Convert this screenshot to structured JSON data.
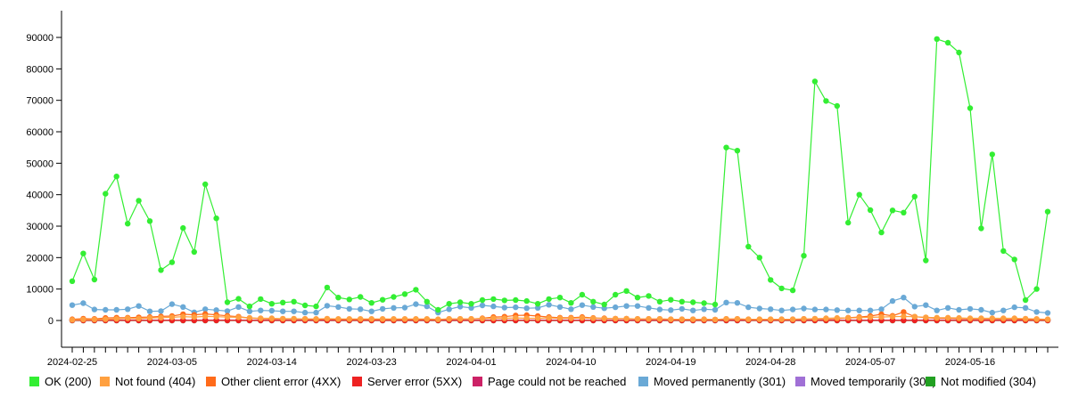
{
  "chart_data": {
    "type": "line",
    "title": "",
    "xlabel": "",
    "ylabel": "",
    "x_start": "2024-02-25",
    "x_tick_labels": [
      "2024-02-25",
      "2024-03-05",
      "2024-03-14",
      "2024-03-23",
      "2024-04-01",
      "2024-04-10",
      "2024-04-19",
      "2024-04-28",
      "2024-05-07",
      "2024-05-16"
    ],
    "y_ticks": [
      0,
      10000,
      20000,
      30000,
      40000,
      50000,
      60000,
      70000,
      80000,
      90000
    ],
    "ylim": [
      -8500,
      98500
    ],
    "grid": false,
    "legend_position": "bottom",
    "series": [
      {
        "name": "OK (200)",
        "color": "#33ee33",
        "values": [
          12500,
          21300,
          13000,
          40300,
          45800,
          30800,
          38100,
          31600,
          16000,
          18500,
          29400,
          21800,
          43300,
          32500,
          5800,
          6900,
          4500,
          6800,
          5300,
          5700,
          6000,
          4800,
          4500,
          10500,
          7300,
          6700,
          7500,
          5600,
          6600,
          7500,
          8400,
          9800,
          6000,
          3400,
          5300,
          5800,
          5300,
          6500,
          6800,
          6400,
          6500,
          6200,
          5300,
          6800,
          7300,
          5600,
          8200,
          6000,
          5100,
          8200,
          9400,
          7300,
          7800,
          6000,
          6600,
          6000,
          5800,
          5500,
          5100,
          55000,
          54000,
          23500,
          20000,
          12900,
          10200,
          9600,
          20600,
          76000,
          69800,
          68200,
          31100,
          40000,
          35100,
          28000,
          35000,
          34300,
          39400,
          19100,
          89500,
          88300,
          85200,
          67500,
          29300,
          52800,
          22100,
          19400,
          6500,
          10000,
          34600
        ]
      },
      {
        "name": "Not found (404)",
        "color": "#ffa040",
        "values": [
          200,
          300,
          300,
          400,
          500,
          700,
          600,
          800,
          900,
          1000,
          1200,
          1100,
          1300,
          1200,
          1100,
          1000,
          800,
          700,
          700,
          600,
          600,
          500,
          500,
          600,
          500,
          500,
          500,
          500,
          500,
          500,
          500,
          500,
          500,
          400,
          500,
          500,
          500,
          600,
          700,
          700,
          800,
          700,
          700,
          800,
          700,
          700,
          800,
          700,
          600,
          600,
          600,
          500,
          500,
          500,
          400,
          400,
          400,
          400,
          300,
          500,
          500,
          400,
          400,
          400,
          400,
          400,
          500,
          600,
          700,
          800,
          800,
          900,
          1000,
          1100,
          1200,
          1300,
          1200,
          1000,
          900,
          900,
          800,
          700,
          700,
          700,
          700,
          700,
          600,
          500,
          400
        ]
      },
      {
        "name": "Other client error (4XX)",
        "color": "#ff6b1a",
        "values": [
          400,
          600,
          500,
          800,
          900,
          900,
          1000,
          1100,
          1300,
          1400,
          2000,
          1800,
          2100,
          1800,
          1500,
          1200,
          800,
          600,
          500,
          500,
          500,
          500,
          400,
          500,
          400,
          400,
          400,
          400,
          400,
          400,
          400,
          400,
          400,
          300,
          500,
          500,
          500,
          700,
          1100,
          1200,
          1600,
          1700,
          1400,
          1100,
          900,
          900,
          1100,
          800,
          700,
          600,
          600,
          500,
          500,
          500,
          400,
          400,
          400,
          400,
          300,
          500,
          500,
          400,
          400,
          400,
          400,
          400,
          500,
          500,
          500,
          600,
          900,
          1100,
          1400,
          2000,
          1500,
          2700,
          1200,
          900,
          700,
          700,
          600,
          500,
          500,
          500,
          500,
          500,
          400,
          300,
          300
        ]
      },
      {
        "name": "Server error (5XX)",
        "color": "#ee2222",
        "values": [
          60,
          60,
          60,
          60,
          60,
          60,
          60,
          60,
          60,
          60,
          60,
          60,
          60,
          60,
          60,
          60,
          60,
          60,
          60,
          60,
          60,
          60,
          60,
          60,
          60,
          60,
          60,
          60,
          60,
          60,
          60,
          60,
          60,
          60,
          60,
          60,
          60,
          60,
          60,
          60,
          60,
          60,
          60,
          60,
          60,
          60,
          60,
          60,
          60,
          60,
          60,
          60,
          60,
          60,
          60,
          60,
          60,
          60,
          60,
          60,
          60,
          60,
          60,
          60,
          60,
          60,
          60,
          60,
          60,
          60,
          60,
          60,
          60,
          60,
          60,
          60,
          60,
          60,
          60,
          60,
          60,
          60,
          60,
          60,
          60,
          60,
          60,
          60,
          60
        ]
      },
      {
        "name": "Page could not be reached",
        "color": "#cc2266",
        "values": [
          80,
          80,
          80,
          80,
          80,
          80,
          80,
          80,
          80,
          80,
          80,
          80,
          80,
          80,
          80,
          80,
          80,
          80,
          80,
          80,
          80,
          80,
          80,
          80,
          80,
          80,
          80,
          80,
          80,
          80,
          80,
          80,
          80,
          80,
          80,
          80,
          80,
          80,
          80,
          80,
          80,
          80,
          80,
          80,
          80,
          80,
          80,
          80,
          80,
          80,
          80,
          80,
          80,
          80,
          80,
          80,
          80,
          80,
          80,
          80,
          80,
          80,
          80,
          80,
          80,
          80,
          80,
          80,
          80,
          80,
          80,
          80,
          80,
          80,
          80,
          80,
          80,
          80,
          80,
          80,
          80,
          80,
          80,
          80,
          80,
          80,
          80,
          80,
          80
        ]
      },
      {
        "name": "Moved permanently (301)",
        "color": "#6aa9d6",
        "values": [
          4900,
          5500,
          3500,
          3400,
          3400,
          3600,
          4600,
          2900,
          3000,
          5200,
          4300,
          2600,
          3600,
          3300,
          3000,
          4300,
          2900,
          3200,
          3100,
          2900,
          2900,
          2500,
          2500,
          4700,
          4300,
          3700,
          3600,
          2900,
          3700,
          4000,
          4100,
          5200,
          4500,
          2500,
          3600,
          4400,
          4000,
          4800,
          4500,
          4100,
          4200,
          3900,
          4000,
          5000,
          4300,
          3600,
          4900,
          4300,
          3900,
          4200,
          4600,
          4600,
          4000,
          3500,
          3300,
          3700,
          3200,
          3600,
          3400,
          5700,
          5600,
          4200,
          3800,
          3600,
          3200,
          3500,
          3800,
          3500,
          3500,
          3300,
          3200,
          3200,
          3200,
          3600,
          6200,
          7300,
          4400,
          4900,
          3200,
          4000,
          3400,
          3700,
          3400,
          2500,
          3200,
          4200,
          4000,
          2700,
          2400
        ]
      },
      {
        "name": "Moved temporarily (302)",
        "color": "#a070d6",
        "values": [
          120,
          120,
          120,
          120,
          120,
          120,
          120,
          120,
          120,
          120,
          120,
          120,
          120,
          120,
          120,
          120,
          120,
          120,
          120,
          120,
          120,
          120,
          120,
          120,
          120,
          120,
          120,
          120,
          120,
          120,
          120,
          120,
          120,
          120,
          120,
          120,
          120,
          120,
          120,
          120,
          120,
          120,
          120,
          120,
          120,
          120,
          120,
          120,
          120,
          120,
          120,
          120,
          120,
          120,
          120,
          120,
          120,
          120,
          120,
          120,
          120,
          120,
          120,
          120,
          120,
          120,
          120,
          120,
          120,
          120,
          120,
          120,
          120,
          120,
          120,
          120,
          120,
          120,
          120,
          120,
          120,
          120,
          120,
          120,
          120,
          120,
          120,
          120,
          120
        ]
      },
      {
        "name": "Not modified (304)",
        "color": "#22a022",
        "values": [
          0,
          0,
          0,
          0,
          0,
          0,
          0,
          0,
          0,
          0,
          0,
          0,
          0,
          0,
          0,
          0,
          0,
          0,
          0,
          0,
          0,
          0,
          0,
          0,
          0,
          0,
          0,
          0,
          0,
          0,
          0,
          0,
          0,
          0,
          0,
          0,
          0,
          0,
          0,
          0,
          0,
          0,
          0,
          0,
          0,
          0,
          0,
          0,
          0,
          0,
          0,
          0,
          0,
          0,
          0,
          0,
          0,
          0,
          0,
          0,
          0,
          0,
          0,
          0,
          0,
          0,
          0,
          0,
          0,
          0,
          0,
          0,
          0,
          0,
          0,
          0,
          0,
          0,
          0,
          0,
          0,
          0,
          0,
          0,
          0,
          0,
          0,
          0,
          0
        ]
      }
    ]
  }
}
